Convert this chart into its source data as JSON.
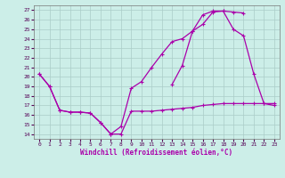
{
  "xlabel": "Windchill (Refroidissement éolien,°C)",
  "bg_color": "#cceee8",
  "grid_color": "#aaccc8",
  "line_color": "#aa00aa",
  "xlim": [
    -0.5,
    23.5
  ],
  "ylim": [
    13.5,
    27.5
  ],
  "yticks": [
    14,
    15,
    16,
    17,
    18,
    19,
    20,
    21,
    22,
    23,
    24,
    25,
    26,
    27
  ],
  "xticks": [
    0,
    1,
    2,
    3,
    4,
    5,
    6,
    7,
    8,
    9,
    10,
    11,
    12,
    13,
    14,
    15,
    16,
    17,
    18,
    19,
    20,
    21,
    22,
    23
  ],
  "line1_x": [
    0,
    1,
    2,
    3,
    4,
    5,
    6,
    7,
    8,
    9,
    10,
    11,
    12,
    13,
    14,
    15,
    16,
    17,
    18,
    19,
    20,
    21,
    22,
    23
  ],
  "line1_y": [
    20.3,
    19.0,
    16.5,
    16.3,
    16.3,
    16.2,
    15.2,
    14.0,
    14.0,
    16.4,
    16.4,
    16.4,
    16.5,
    16.6,
    16.7,
    16.8,
    17.0,
    17.1,
    17.2,
    17.2,
    17.2,
    17.2,
    17.2,
    17.2
  ],
  "line2_x": [
    0,
    1,
    2,
    3,
    4,
    5,
    6,
    7,
    8,
    9,
    10,
    11,
    12,
    13,
    14,
    15,
    16,
    17,
    18,
    19,
    20,
    21,
    22,
    23
  ],
  "line2_y": [
    20.3,
    19.0,
    16.5,
    16.3,
    16.3,
    16.2,
    15.2,
    14.0,
    14.8,
    18.8,
    19.5,
    21.0,
    22.4,
    23.7,
    24.0,
    24.8,
    25.5,
    26.8,
    26.9,
    25.0,
    24.3,
    20.3,
    17.2,
    17.0
  ],
  "line3_x": [
    0,
    1,
    2,
    3,
    4,
    5,
    6,
    7,
    8,
    9,
    10,
    11,
    12,
    13,
    14,
    15,
    16,
    17,
    18,
    19,
    20,
    21,
    22,
    23
  ],
  "line3_y": [
    null,
    null,
    null,
    null,
    null,
    null,
    null,
    null,
    null,
    null,
    null,
    null,
    null,
    19.2,
    21.2,
    24.8,
    26.5,
    26.9,
    26.9,
    26.8,
    26.7,
    null,
    null,
    null
  ]
}
